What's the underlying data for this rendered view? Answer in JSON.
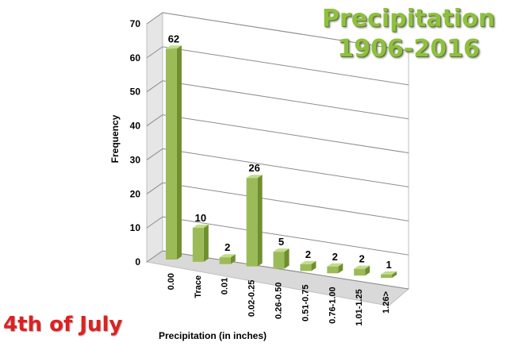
{
  "title_line1": "Precipitation",
  "title_line2": "1906-2016",
  "caption": "4th of July",
  "colors": {
    "bar_front": "#9bbb59",
    "bar_side": "#6f8f2f",
    "bar_top": "#c3dc8a",
    "title": "#8fbf3f",
    "caption": "#e02020"
  },
  "chart_data": {
    "type": "bar",
    "title": "Precipitation 1906-2016",
    "xlabel": "Precipitation (in inches)",
    "ylabel": "Frequency",
    "categories": [
      "0.00",
      "Trace",
      "0.01",
      "0.02-0.25",
      "0.26-0.50",
      "0.51-0.75",
      "0.76-1.00",
      "1.01-1.25",
      "1.26>"
    ],
    "values": [
      62,
      10,
      2,
      26,
      5,
      2,
      2,
      2,
      1
    ],
    "ylim": [
      0,
      70
    ],
    "yticks": [
      0,
      10,
      20,
      30,
      40,
      50,
      60,
      70
    ],
    "grid": true,
    "legend": "none",
    "data_labels": true
  }
}
